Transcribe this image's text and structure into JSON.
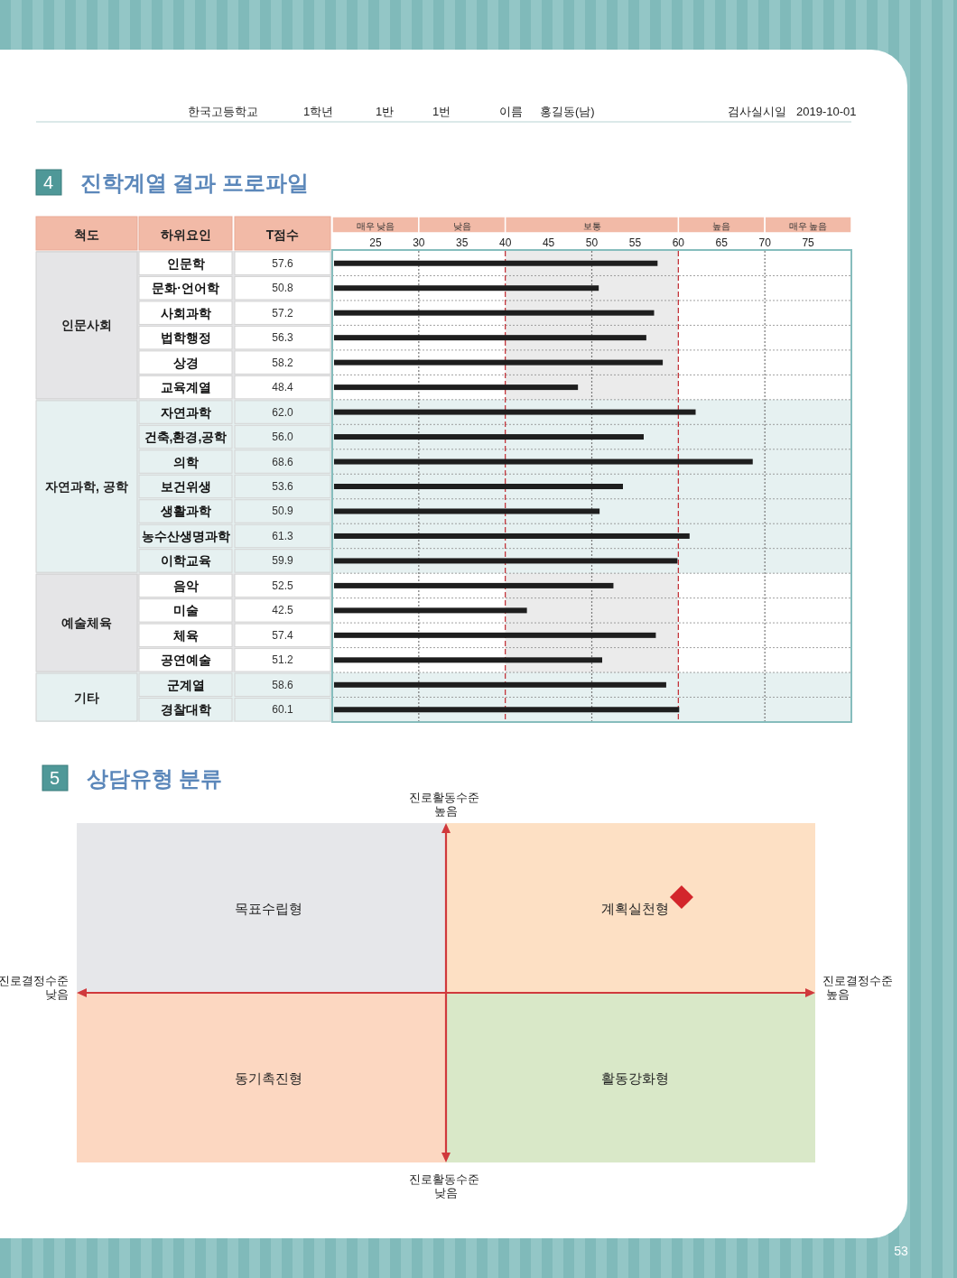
{
  "chart_data": [
    {
      "type": "bar",
      "orientation": "horizontal",
      "title": "4 진학계열 결과 프로파일",
      "xlabel": "T점수",
      "ylabel": "하위요인",
      "categories": [
        "인문학",
        "문화·언어학",
        "사회과학",
        "법학행정",
        "상경",
        "교육계열",
        "자연과학",
        "건축,환경,공학",
        "의학",
        "보건위생",
        "생활과학",
        "농수산생명과학",
        "이학교육",
        "음악",
        "미술",
        "체육",
        "공연예술",
        "군계열",
        "경찰대학"
      ],
      "values": [
        57.6,
        50.8,
        57.2,
        56.3,
        58.2,
        48.4,
        62.0,
        56.0,
        68.6,
        53.6,
        50.9,
        61.3,
        59.9,
        52.5,
        42.5,
        57.4,
        51.2,
        58.6,
        60.1
      ],
      "value_labels": [
        "57.6",
        "50.8",
        "57.2",
        "56.3",
        "58.2",
        "48.4",
        "62.0",
        "56.0",
        "68.6",
        "53.6",
        "50.9",
        "61.3",
        "59.9",
        "52.5",
        "42.5",
        "57.4",
        "51.2",
        "58.6",
        "60.1"
      ],
      "color": "#1e1e1e",
      "xlim": [
        20,
        80
      ],
      "xticks": [
        25,
        30,
        35,
        40,
        45,
        50,
        55,
        60,
        65,
        70,
        75
      ],
      "bands": [
        {
          "axis": "x",
          "from": 40,
          "to": 60,
          "label": "보통",
          "color": "#ebebeb"
        },
        {
          "axis": "y",
          "from": "인문학",
          "to": "교육계열",
          "label": "인문사회",
          "color": "#e5e5e7"
        },
        {
          "axis": "y",
          "from": "자연과학",
          "to": "이학교육",
          "label": "자연과학, 공학",
          "color": "#e6f1f1"
        },
        {
          "axis": "y",
          "from": "음악",
          "to": "공연예술",
          "label": "예술체육",
          "color": "#e5e5e7"
        },
        {
          "axis": "y",
          "from": "군계열",
          "to": "경찰대학",
          "label": "기타",
          "color": "#e6f1f1"
        }
      ],
      "ref_lines": [
        {
          "axis": "x",
          "value": 40,
          "color": "#c0272d",
          "line_style": "dashed"
        },
        {
          "axis": "x",
          "value": 60,
          "color": "#c0272d",
          "line_style": "dashed"
        },
        {
          "axis": "x",
          "value": 30,
          "color": "#777777",
          "line_style": "dotted"
        },
        {
          "axis": "x",
          "value": 50,
          "color": "#777777",
          "line_style": "dotted"
        },
        {
          "axis": "x",
          "value": 70,
          "color": "#777777",
          "line_style": "dotted"
        }
      ],
      "grid": "y",
      "annotations": [
        "척도",
        "한국고등학교",
        "1학년",
        "1반",
        "1번",
        "이름",
        "홍길동(남)",
        "검사실시일",
        "2019-10-01",
        "매우 낮음",
        "낮음",
        "높음",
        "매우 높음"
      ]
    },
    {
      "type": "other",
      "title": "5 상담유형 분류",
      "categories": [
        "목표수립형",
        "계획실천형",
        "동기촉진형",
        "활동강화형"
      ],
      "colors": [
        "#e6e7ea",
        "#fde0c4",
        "#fcd7c1",
        "#d9e8c8"
      ],
      "annotations": [
        "진로결정수준 낮음",
        "진로결정수준 높음",
        "진로활동수준 높음",
        "진로활동수준 낮음",
        "53"
      ]
    }
  ]
}
